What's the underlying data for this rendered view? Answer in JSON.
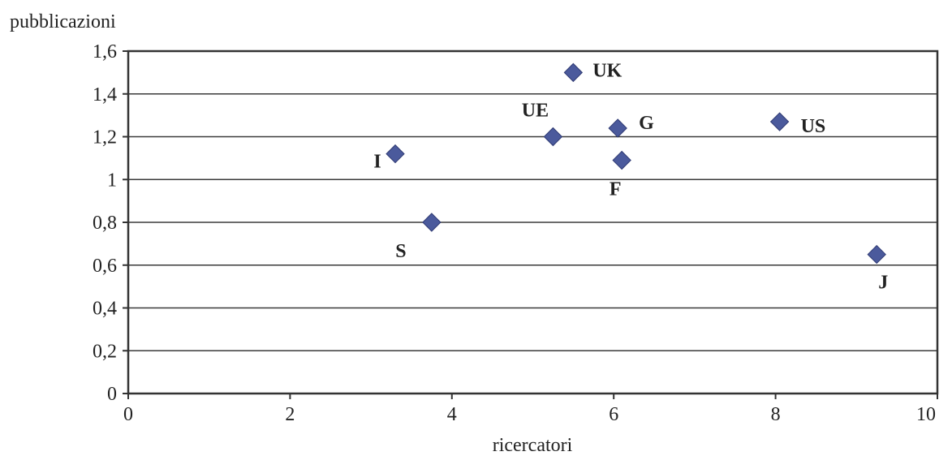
{
  "chart_data": {
    "type": "scatter",
    "title": "",
    "xlabel": "ricercatori",
    "ylabel": "pubblicazioni",
    "xlim": [
      0,
      10
    ],
    "ylim": [
      0,
      1.6
    ],
    "x_ticks": [
      "0",
      "2",
      "4",
      "6",
      "8",
      "10"
    ],
    "y_ticks": [
      "0",
      "0,2",
      "0,4",
      "0,6",
      "0,8",
      "1",
      "1,2",
      "1,4",
      "1,6"
    ],
    "grid": "horizontal",
    "marker": "diamond",
    "marker_color": "#4b5a9c",
    "points": [
      {
        "label": "UK",
        "x": 5.5,
        "y": 1.5
      },
      {
        "label": "UE",
        "x": 5.25,
        "y": 1.2
      },
      {
        "label": "G",
        "x": 6.05,
        "y": 1.24
      },
      {
        "label": "US",
        "x": 8.05,
        "y": 1.27
      },
      {
        "label": "I",
        "x": 3.3,
        "y": 1.12
      },
      {
        "label": "F",
        "x": 6.1,
        "y": 1.09
      },
      {
        "label": "S",
        "x": 3.75,
        "y": 0.8
      },
      {
        "label": "J",
        "x": 9.25,
        "y": 0.65
      }
    ]
  }
}
